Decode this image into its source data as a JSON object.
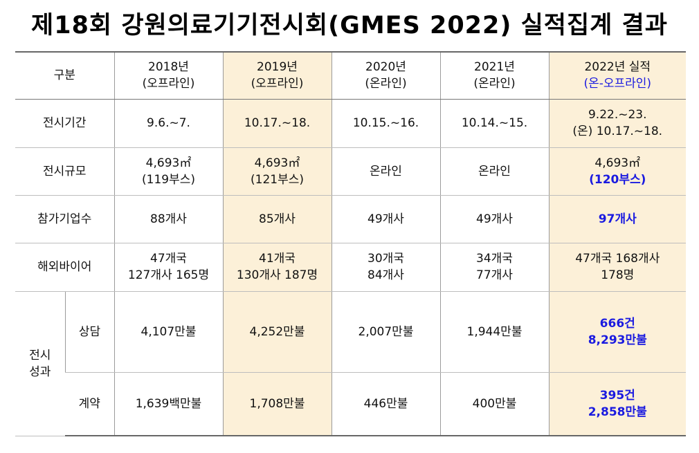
{
  "title": "제18회 강원의료기기전시회(GMES 2022) 실적집계 결과",
  "table": {
    "corner": "구분",
    "columns": [
      {
        "year": "2018년",
        "mode": "(오프라인)"
      },
      {
        "year": "2019년",
        "mode": "(오프라인)"
      },
      {
        "year": "2020년",
        "mode": "(온라인)"
      },
      {
        "year": "2021년",
        "mode": "(온라인)"
      },
      {
        "year": "2022년 실적",
        "mode": "(온-오프라인)"
      }
    ],
    "rows": {
      "period": {
        "label": "전시기간",
        "values": [
          "9.6.~7.",
          "10.17.~18.",
          "10.15.~16.",
          "10.14.~15.",
          [
            "9.22.~23.",
            "(온) 10.17.~18."
          ]
        ]
      },
      "scale": {
        "label": "전시규모",
        "values": [
          [
            "4,693㎡",
            "(119부스)"
          ],
          [
            "4,693㎡",
            "(121부스)"
          ],
          "온라인",
          "온라인",
          [
            "4,693㎡",
            "(120부스)"
          ]
        ]
      },
      "companies": {
        "label": "참가기업수",
        "values": [
          "88개사",
          "85개사",
          "49개사",
          "49개사",
          "97개사"
        ]
      },
      "buyers": {
        "label": "해외바이어",
        "values": [
          [
            "47개국",
            "127개사 165명"
          ],
          [
            "41개국",
            "130개사 187명"
          ],
          [
            "30개국",
            "84개사"
          ],
          [
            "34개국",
            "77개사"
          ],
          [
            "47개국 168개사",
            "178명"
          ]
        ]
      },
      "results_group": "전시 성과",
      "consultation": {
        "label": "상담",
        "values": [
          "4,107만불",
          "4,252만불",
          "2,007만불",
          "1,944만불",
          [
            "666건",
            "8,293만불"
          ]
        ]
      },
      "contract": {
        "label": "계약",
        "values": [
          "1,639백만불",
          "1,708만불",
          "446만불",
          "400만불",
          [
            "395건",
            "2,858만불"
          ]
        ]
      }
    }
  }
}
